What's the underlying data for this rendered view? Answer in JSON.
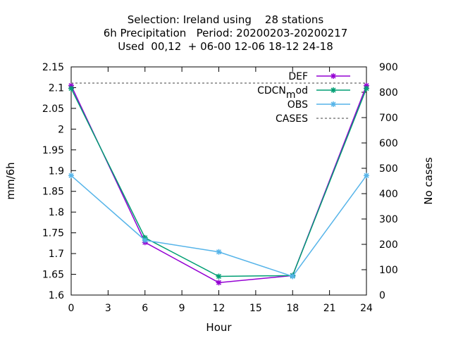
{
  "chart_data": {
    "type": "line",
    "title_lines": [
      "Selection: Ireland using    28 stations",
      "6h Precipitation   Period: 20200203-20200217",
      "Used  00,12  + 06-00 12-06 18-12 24-18"
    ],
    "xlabel": "Hour",
    "ylabel": "mm/6h",
    "y2label": "No cases",
    "xlim": [
      0,
      24
    ],
    "ylim": [
      1.6,
      2.15
    ],
    "y2lim": [
      0,
      900
    ],
    "xticks": [
      0,
      3,
      6,
      9,
      12,
      15,
      18,
      21,
      24
    ],
    "yticks": [
      1.6,
      1.65,
      1.7,
      1.75,
      1.8,
      1.85,
      1.9,
      1.95,
      2,
      2.05,
      2.1,
      2.15
    ],
    "yticks_labels": [
      "1.6",
      "1.65",
      "1.7",
      "1.75",
      "1.8",
      "1.85",
      "1.9",
      "1.95",
      "2",
      "2.05",
      "2.1",
      "2.15"
    ],
    "y2ticks": [
      0,
      100,
      200,
      300,
      400,
      500,
      600,
      700,
      800,
      900
    ],
    "legend_position": "top-right",
    "grid": false,
    "x": [
      0,
      6,
      12,
      18,
      24
    ],
    "series": [
      {
        "name": "DEF",
        "color": "#9400d3",
        "axis": "y",
        "values": [
          2.105,
          1.727,
          1.63,
          1.647,
          2.105
        ]
      },
      {
        "name": "CDCN",
        "name_sub": "m",
        "name_tail": "od",
        "color": "#009e73",
        "axis": "y",
        "values": [
          2.098,
          1.738,
          1.645,
          1.647,
          2.098
        ]
      },
      {
        "name": "OBS",
        "color": "#56b4e9",
        "axis": "y",
        "values": [
          1.888,
          1.732,
          1.704,
          1.645,
          1.888
        ]
      },
      {
        "name": "CASES",
        "color": "#808080",
        "axis": "y2",
        "dashed": true,
        "values": [
          836,
          836,
          836,
          836,
          836
        ]
      }
    ]
  }
}
